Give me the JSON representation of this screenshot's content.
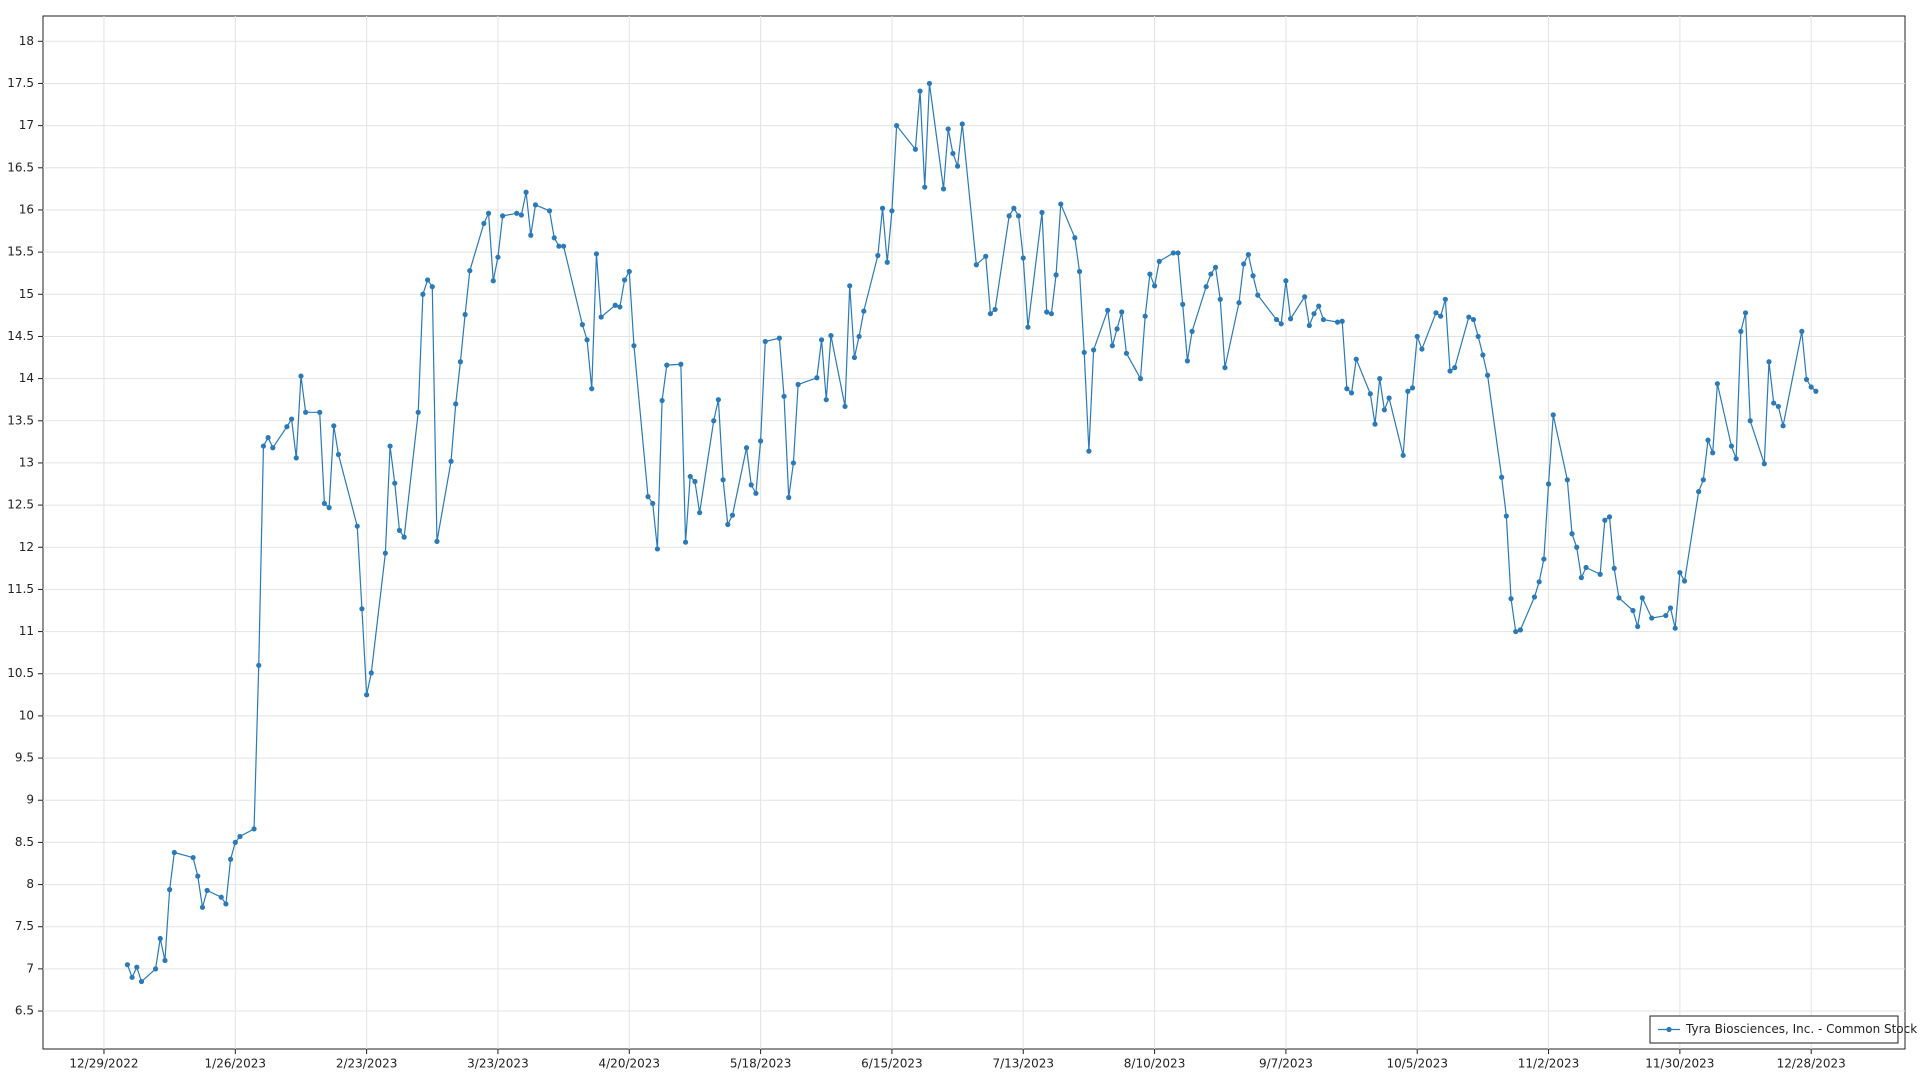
{
  "chart_data": {
    "type": "line",
    "x": [
      "1/3/2023",
      "1/4/2023",
      "1/5/2023",
      "1/6/2023",
      "1/9/2023",
      "1/10/2023",
      "1/11/2023",
      "1/12/2023",
      "1/13/2023",
      "1/17/2023",
      "1/18/2023",
      "1/19/2023",
      "1/20/2023",
      "1/23/2023",
      "1/24/2023",
      "1/25/2023",
      "1/26/2023",
      "1/27/2023",
      "1/30/2023",
      "1/31/2023",
      "2/1/2023",
      "2/2/2023",
      "2/3/2023",
      "2/6/2023",
      "2/7/2023",
      "2/8/2023",
      "2/9/2023",
      "2/10/2023",
      "2/13/2023",
      "2/14/2023",
      "2/15/2023",
      "2/16/2023",
      "2/17/2023",
      "2/21/2023",
      "2/22/2023",
      "2/23/2023",
      "2/24/2023",
      "2/27/2023",
      "2/28/2023",
      "3/1/2023",
      "3/2/2023",
      "3/3/2023",
      "3/6/2023",
      "3/7/2023",
      "3/8/2023",
      "3/9/2023",
      "3/10/2023",
      "3/13/2023",
      "3/14/2023",
      "3/15/2023",
      "3/16/2023",
      "3/17/2023",
      "3/20/2023",
      "3/21/2023",
      "3/22/2023",
      "3/23/2023",
      "3/24/2023",
      "3/27/2023",
      "3/28/2023",
      "3/29/2023",
      "3/30/2023",
      "3/31/2023",
      "4/3/2023",
      "4/4/2023",
      "4/5/2023",
      "4/6/2023",
      "4/10/2023",
      "4/11/2023",
      "4/12/2023",
      "4/13/2023",
      "4/14/2023",
      "4/17/2023",
      "4/18/2023",
      "4/19/2023",
      "4/20/2023",
      "4/21/2023",
      "4/24/2023",
      "4/25/2023",
      "4/26/2023",
      "4/27/2023",
      "4/28/2023",
      "5/1/2023",
      "5/2/2023",
      "5/3/2023",
      "5/4/2023",
      "5/5/2023",
      "5/8/2023",
      "5/9/2023",
      "5/10/2023",
      "5/11/2023",
      "5/12/2023",
      "5/15/2023",
      "5/16/2023",
      "5/17/2023",
      "5/18/2023",
      "5/19/2023",
      "5/22/2023",
      "5/23/2023",
      "5/24/2023",
      "5/25/2023",
      "5/26/2023",
      "5/30/2023",
      "5/31/2023",
      "6/1/2023",
      "6/2/2023",
      "6/5/2023",
      "6/6/2023",
      "6/7/2023",
      "6/8/2023",
      "6/9/2023",
      "6/12/2023",
      "6/13/2023",
      "6/14/2023",
      "6/15/2023",
      "6/16/2023",
      "6/20/2023",
      "6/21/2023",
      "6/22/2023",
      "6/23/2023",
      "6/26/2023",
      "6/27/2023",
      "6/28/2023",
      "6/29/2023",
      "6/30/2023",
      "7/3/2023",
      "7/5/2023",
      "7/6/2023",
      "7/7/2023",
      "7/10/2023",
      "7/11/2023",
      "7/12/2023",
      "7/13/2023",
      "7/14/2023",
      "7/17/2023",
      "7/18/2023",
      "7/19/2023",
      "7/20/2023",
      "7/21/2023",
      "7/24/2023",
      "7/25/2023",
      "7/26/2023",
      "7/27/2023",
      "7/28/2023",
      "7/31/2023",
      "8/1/2023",
      "8/2/2023",
      "8/3/2023",
      "8/4/2023",
      "8/7/2023",
      "8/8/2023",
      "8/9/2023",
      "8/10/2023",
      "8/11/2023",
      "8/14/2023",
      "8/15/2023",
      "8/16/2023",
      "8/17/2023",
      "8/18/2023",
      "8/21/2023",
      "8/22/2023",
      "8/23/2023",
      "8/24/2023",
      "8/25/2023",
      "8/28/2023",
      "8/29/2023",
      "8/30/2023",
      "8/31/2023",
      "9/1/2023",
      "9/5/2023",
      "9/6/2023",
      "9/7/2023",
      "9/8/2023",
      "9/11/2023",
      "9/12/2023",
      "9/13/2023",
      "9/14/2023",
      "9/15/2023",
      "9/18/2023",
      "9/19/2023",
      "9/20/2023",
      "9/21/2023",
      "9/22/2023",
      "9/25/2023",
      "9/26/2023",
      "9/27/2023",
      "9/28/2023",
      "9/29/2023",
      "10/2/2023",
      "10/3/2023",
      "10/4/2023",
      "10/5/2023",
      "10/6/2023",
      "10/9/2023",
      "10/10/2023",
      "10/11/2023",
      "10/12/2023",
      "10/13/2023",
      "10/16/2023",
      "10/17/2023",
      "10/18/2023",
      "10/19/2023",
      "10/20/2023",
      "10/23/2023",
      "10/24/2023",
      "10/25/2023",
      "10/26/2023",
      "10/27/2023",
      "10/30/2023",
      "10/31/2023",
      "11/1/2023",
      "11/2/2023",
      "11/3/2023",
      "11/6/2023",
      "11/7/2023",
      "11/8/2023",
      "11/9/2023",
      "11/10/2023",
      "11/13/2023",
      "11/14/2023",
      "11/15/2023",
      "11/16/2023",
      "11/17/2023",
      "11/20/2023",
      "11/21/2023",
      "11/22/2023",
      "11/24/2023",
      "11/27/2023",
      "11/28/2023",
      "11/29/2023",
      "11/30/2023",
      "12/1/2023",
      "12/4/2023",
      "12/5/2023",
      "12/6/2023",
      "12/7/2023",
      "12/8/2023",
      "12/11/2023",
      "12/12/2023",
      "12/13/2023",
      "12/14/2023",
      "12/15/2023",
      "12/18/2023",
      "12/19/2023",
      "12/20/2023",
      "12/21/2023",
      "12/22/2023",
      "12/26/2023",
      "12/27/2023",
      "12/28/2023",
      "12/29/2023"
    ],
    "series": [
      {
        "name": "Tyra Biosciences, Inc. - Common Stock",
        "color": "#2a7ab8",
        "values": [
          7.05,
          6.9,
          7.02,
          6.85,
          7.0,
          7.36,
          7.1,
          7.94,
          8.38,
          8.32,
          8.1,
          7.73,
          7.93,
          7.85,
          7.77,
          8.3,
          8.5,
          8.57,
          8.66,
          10.6,
          13.2,
          13.3,
          13.18,
          13.43,
          13.52,
          13.06,
          14.03,
          13.6,
          13.6,
          12.52,
          12.47,
          13.44,
          13.1,
          12.25,
          11.27,
          10.25,
          10.51,
          11.93,
          13.2,
          12.76,
          12.2,
          12.12,
          13.6,
          15.0,
          15.17,
          15.09,
          12.07,
          13.02,
          13.7,
          14.2,
          14.76,
          15.28,
          15.84,
          15.96,
          15.16,
          15.44,
          15.93,
          15.96,
          15.94,
          16.21,
          15.7,
          16.06,
          15.99,
          15.67,
          15.57,
          15.57,
          14.64,
          14.46,
          13.88,
          15.48,
          14.73,
          14.87,
          14.85,
          15.17,
          15.27,
          14.39,
          12.6,
          12.52,
          11.98,
          13.74,
          14.16,
          14.17,
          12.06,
          12.84,
          12.78,
          12.41,
          13.5,
          13.75,
          12.8,
          12.27,
          12.38,
          13.18,
          12.74,
          12.64,
          13.26,
          14.44,
          14.48,
          13.79,
          12.59,
          13.0,
          13.93,
          14.01,
          14.46,
          13.75,
          14.51,
          13.67,
          15.1,
          14.25,
          14.5,
          14.8,
          15.46,
          16.02,
          15.38,
          15.99,
          17.0,
          16.72,
          17.41,
          16.27,
          17.5,
          16.25,
          16.96,
          16.67,
          16.52,
          17.02,
          15.35,
          15.45,
          14.77,
          14.82,
          15.93,
          16.02,
          15.93,
          15.43,
          14.61,
          15.97,
          14.79,
          14.77,
          15.23,
          16.07,
          15.67,
          15.27,
          14.31,
          13.14,
          14.34,
          14.81,
          14.39,
          14.59,
          14.79,
          14.3,
          14.0,
          14.74,
          15.24,
          15.1,
          15.39,
          15.49,
          15.49,
          14.88,
          14.21,
          14.56,
          15.09,
          15.24,
          15.32,
          14.94,
          14.13,
          14.9,
          15.36,
          15.47,
          15.22,
          14.99,
          14.7,
          14.65,
          15.16,
          14.71,
          14.97,
          14.63,
          14.77,
          14.86,
          14.7,
          14.67,
          14.68,
          13.88,
          13.83,
          14.23,
          13.82,
          13.46,
          14.0,
          13.63,
          13.77,
          13.09,
          13.85,
          13.89,
          14.5,
          14.35,
          14.78,
          14.74,
          14.94,
          14.09,
          14.13,
          14.73,
          14.7,
          14.5,
          14.28,
          14.04,
          12.83,
          12.37,
          11.39,
          11.0,
          11.02,
          11.41,
          11.59,
          11.86,
          12.75,
          13.57,
          12.8,
          12.16,
          12.0,
          11.64,
          11.76,
          11.68,
          12.32,
          12.36,
          11.75,
          11.4,
          11.25,
          11.06,
          11.4,
          11.16,
          11.19,
          11.28,
          11.04,
          11.7,
          11.6,
          12.66,
          12.8,
          13.27,
          13.12,
          13.94,
          13.2,
          13.05,
          14.56,
          14.78,
          13.5,
          12.99,
          14.2,
          13.71,
          13.67,
          13.44,
          14.56,
          13.99,
          13.9,
          13.85
        ]
      }
    ],
    "xlim": [
      "12/16/2022",
      "1/17/2024"
    ],
    "xticks": [
      "12/29/2022",
      "1/26/2023",
      "2/23/2023",
      "3/23/2023",
      "4/20/2023",
      "5/18/2023",
      "6/15/2023",
      "7/13/2023",
      "8/10/2023",
      "9/7/2023",
      "10/5/2023",
      "11/2/2023",
      "11/30/2023",
      "12/28/2023"
    ],
    "ylim": [
      6.05,
      18.3
    ],
    "yticks": [
      6.5,
      7,
      7.5,
      8,
      8.5,
      9,
      9.5,
      10,
      10.5,
      11,
      11.5,
      12,
      12.5,
      13,
      13.5,
      14,
      14.5,
      15,
      15.5,
      16,
      16.5,
      17,
      17.5,
      18
    ],
    "grid": true,
    "legend": "lower right",
    "markers": true
  }
}
